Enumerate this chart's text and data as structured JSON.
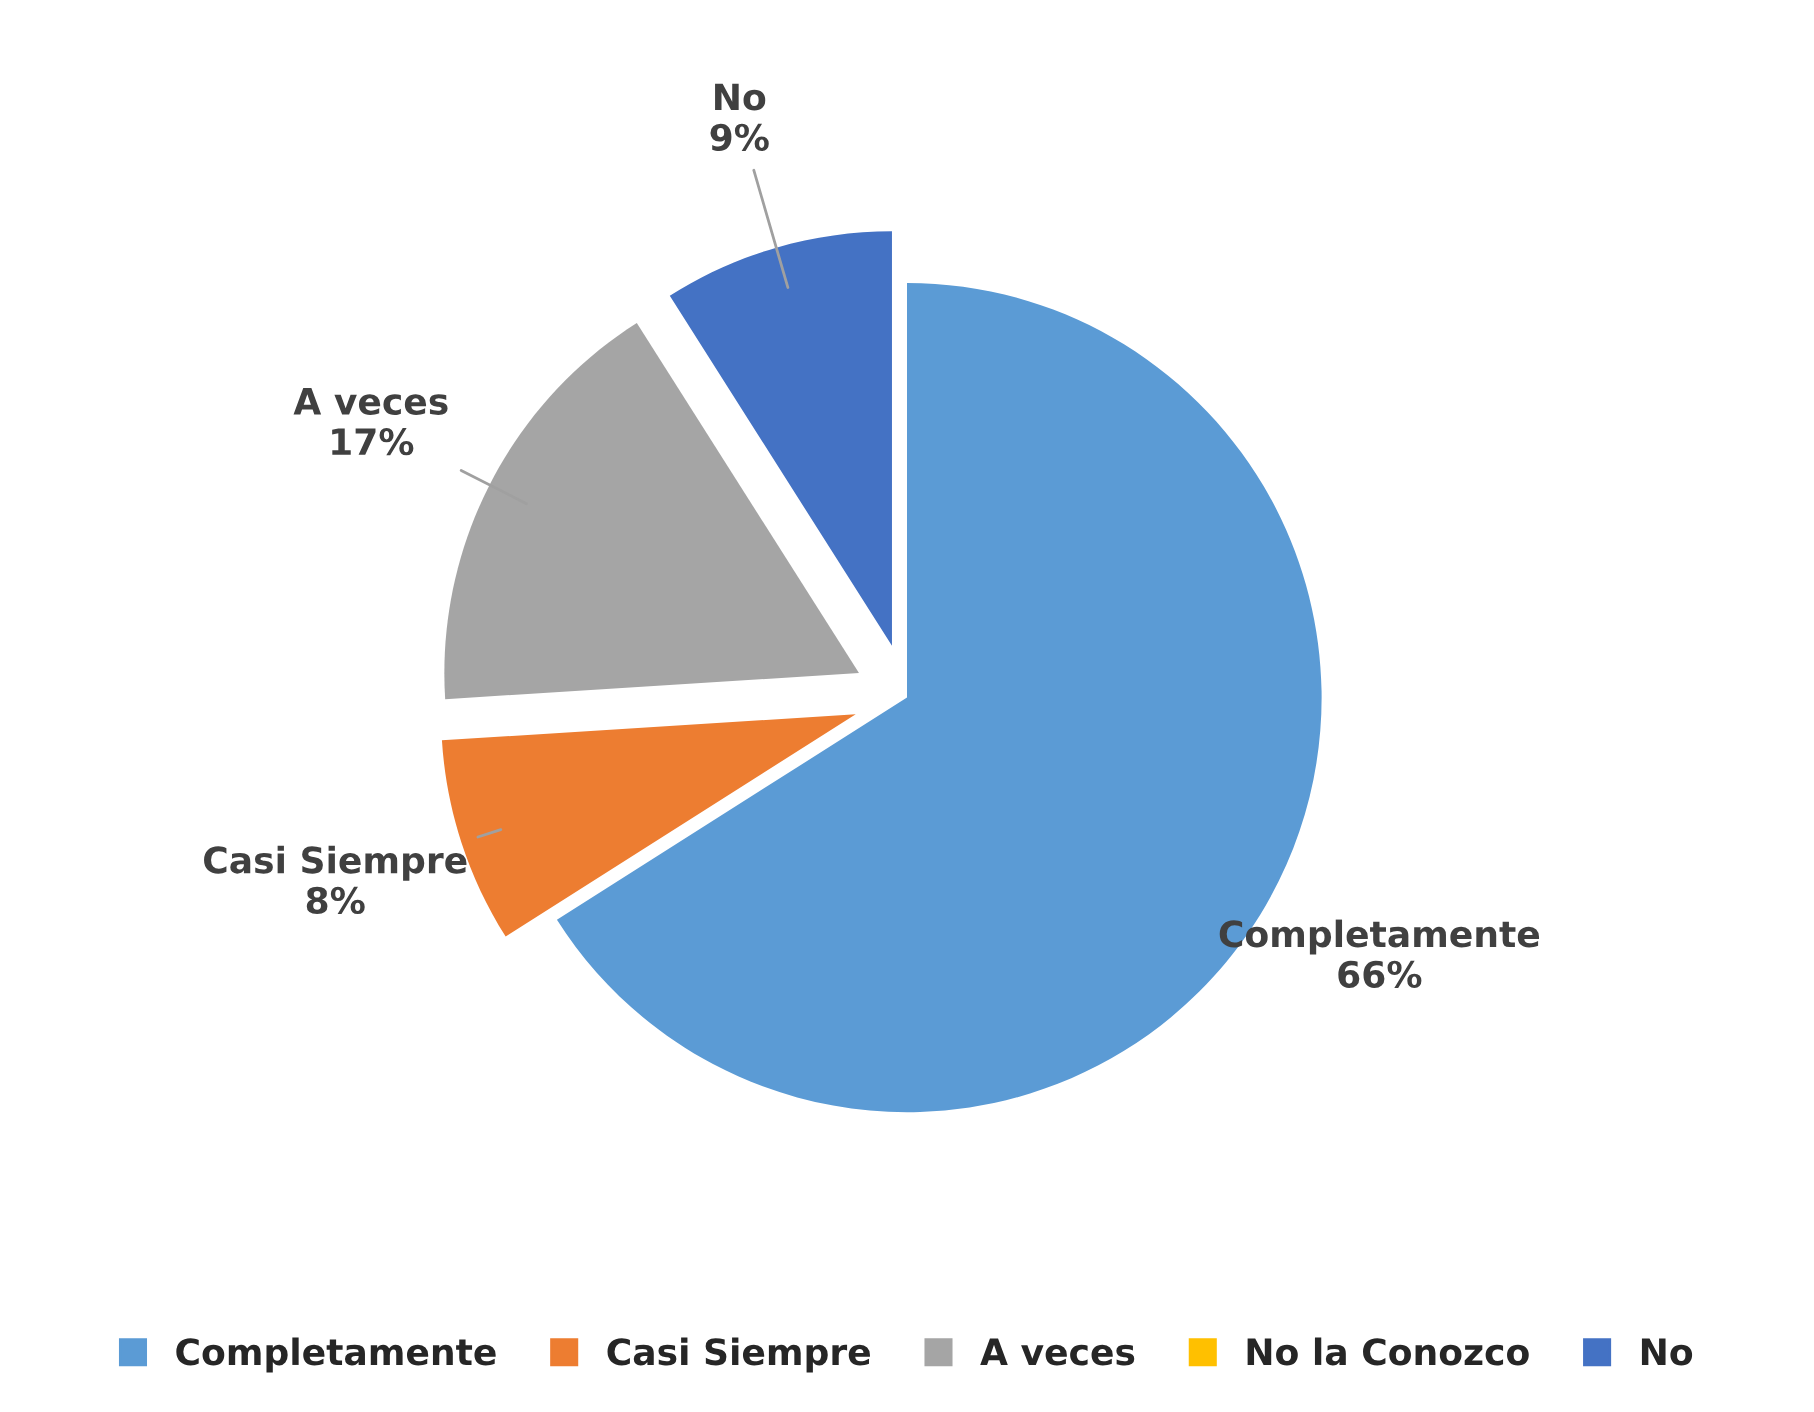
{
  "chart_data": {
    "type": "pie",
    "categories": [
      "Completamente",
      "Casi Siempre",
      "A veces",
      "No la Conozco",
      "No"
    ],
    "values": [
      66,
      8,
      17,
      0,
      9
    ],
    "colors": [
      "#5b9bd5",
      "#ed7d31",
      "#a5a5a5",
      "#ffc000",
      "#4472c4"
    ],
    "value_labels": [
      "66%",
      "8%",
      "17%",
      null,
      "9%"
    ],
    "legend": "bottom"
  }
}
